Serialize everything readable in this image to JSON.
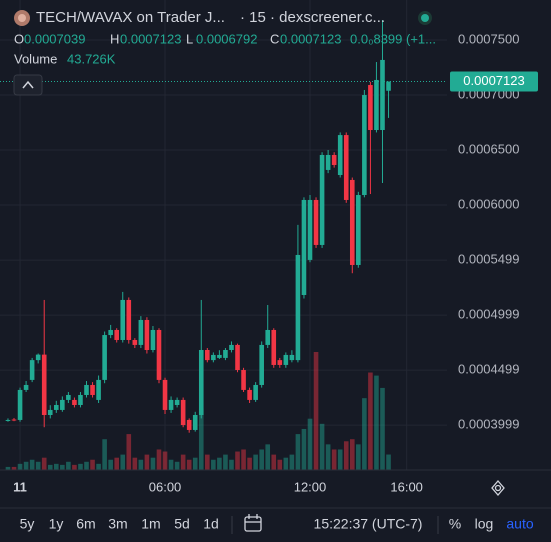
{
  "chart_data": {
    "type": "candlestick",
    "title": "TECH/WAVAX on Trader J...",
    "subtitle": "· 15 · dexscreener.c...",
    "ohlc_labels": [
      "O",
      "H",
      "L",
      "C"
    ],
    "ohlc_values": [
      0.0007039,
      0.0007123,
      0.0006792,
      0.0007123
    ],
    "change": "0.0₀8399 (+1...",
    "volume_label": "Volume",
    "volume_value_label": "43.726K",
    "up_color": "#22ab94",
    "down_color": "#f23645",
    "grid": true,
    "xlim": [
      -0.83,
      17.67
    ],
    "xticks": [
      {
        "value": 0,
        "label": "11"
      },
      {
        "value": 6,
        "label": "06:00"
      },
      {
        "value": 12,
        "label": "12:00"
      },
      {
        "value": 16,
        "label": "16:00"
      }
    ],
    "ylim": [
      0.0003591,
      0.0007864
    ],
    "yticks": [
      {
        "value": 0.00075,
        "label": "0.0007500"
      },
      {
        "value": 0.0007,
        "label": "0.0007000"
      },
      {
        "value": 0.00065,
        "label": "0.0006500"
      },
      {
        "value": 0.0006,
        "label": "0.0006000"
      },
      0.0005499,
      0.0004999,
      0.0004499,
      0.0003999
    ],
    "x": [
      -0.5,
      -0.25,
      0,
      0.25,
      0.5,
      0.75,
      1,
      1.25,
      1.5,
      1.75,
      2,
      2.25,
      2.5,
      2.75,
      3,
      3.25,
      3.5,
      3.75,
      4,
      4.25,
      4.5,
      4.75,
      5,
      5.25,
      5.5,
      5.75,
      6,
      6.25,
      6.5,
      6.75,
      7,
      7.25,
      7.5,
      7.75,
      8,
      8.25,
      8.5,
      8.75,
      9,
      9.25,
      9.5,
      9.75,
      10,
      10.25,
      10.5,
      10.75,
      11,
      11.25,
      11.5,
      11.75,
      12,
      12.25,
      12.5,
      12.75,
      13,
      13.25,
      13.5,
      13.75,
      14,
      14.25,
      14.5,
      14.75,
      15,
      15.25
    ],
    "open": [
      0.0004046,
      0.000405,
      0.0004046,
      0.0004319,
      0.000441,
      0.000459,
      0.000464,
      0.0004091,
      0.0004137,
      0.0004137,
      0.0004228,
      0.0004228,
      0.0004182,
      0.0004273,
      0.0004364,
      0.0004228,
      0.000441,
      0.0004818,
      0.0004864,
      0.0004773,
      0.0005137,
      0.0004773,
      0.0004728,
      0.0004955,
      0.0004682,
      0.0004864,
      0.000441,
      0.0004137,
      0.0004182,
      0.0004228,
      0.0004046,
      0.0003955,
      0.0004091,
      0.0004682,
      0.000459,
      0.000461,
      0.000461,
      0.0004682,
      0.0004728,
      0.00045,
      0.0004319,
      0.0004228,
      0.0004364,
      0.0004728,
      0.0004864,
      0.000459,
      0.0004546,
      0.000459,
      0.000459,
      0.0005182,
      0.0005501,
      0.0006046,
      0.0005637,
      0.0006319,
      0.0006455,
      0.0006273,
      0.0006636,
      0.0006228,
      0.0005455,
      0.0006091,
      0.0007091,
      0.0006682,
      0.0006682,
      0.0007039
    ],
    "high": [
      0.000406,
      0.0004064,
      0.000434,
      0.00044,
      0.000461,
      0.000465,
      0.0005137,
      0.000418,
      0.000422,
      0.000426,
      0.00043,
      0.000425,
      0.00043,
      0.00044,
      0.000439,
      0.000445,
      0.000485,
      0.000491,
      0.000488,
      0.000521,
      0.000516,
      0.000479,
      0.000499,
      0.000498,
      0.00049,
      0.000488,
      0.000443,
      0.000426,
      0.000425,
      0.000425,
      0.000406,
      0.000412,
      0.0005137,
      0.00047,
      0.000466,
      0.000468,
      0.00047,
      0.000476,
      0.000474,
      0.000452,
      0.000434,
      0.000439,
      0.000476,
      0.0005091,
      0.000488,
      0.000461,
      0.000466,
      0.000468,
      0.0005819,
      0.000607,
      0.0006091,
      0.000607,
      0.000648,
      0.00065,
      0.000648,
      0.000666,
      0.000666,
      0.000625,
      0.000612,
      0.0007046,
      0.000712,
      0.00073,
      0.0007682,
      0.0007123
    ],
    "low": [
      0.000403,
      0.0004035,
      0.000403,
      0.00043,
      0.000439,
      0.000456,
      0.000398,
      0.000406,
      0.000411,
      0.000412,
      0.00042,
      0.000416,
      0.000416,
      0.000425,
      0.000425,
      0.00042,
      0.000438,
      0.000479,
      0.000475,
      0.000475,
      0.000474,
      0.00047,
      0.00047,
      0.000465,
      0.000466,
      0.000438,
      0.00041,
      0.000411,
      0.000416,
      0.000398,
      0.000393,
      0.000394,
      0.000406,
      0.000457,
      0.000457,
      0.00046,
      0.000459,
      0.000466,
      0.000448,
      0.00043,
      0.00042,
      0.000421,
      0.000434,
      0.00047,
      0.000452,
      0.000452,
      0.000452,
      0.000457,
      0.000457,
      0.000515,
      0.000548,
      0.000561,
      0.000561,
      0.000629,
      0.000634,
      0.000625,
      0.000602,
      0.000538,
      0.000543,
      0.000607,
      0.00061,
      0.000666,
      0.00062,
      0.0006792
    ],
    "close": [
      0.0004046,
      0.0004046,
      0.0004319,
      0.0004364,
      0.000459,
      0.000464,
      0.0004091,
      0.0004137,
      0.0004182,
      0.0004228,
      0.0004273,
      0.0004182,
      0.0004273,
      0.0004364,
      0.0004273,
      0.000441,
      0.0004818,
      0.0004864,
      0.0004773,
      0.0005137,
      0.0004773,
      0.0004728,
      0.0004955,
      0.0004682,
      0.0004864,
      0.000441,
      0.0004137,
      0.0004228,
      0.0004228,
      0.0004,
      0.0003955,
      0.0004091,
      0.0004682,
      0.000459,
      0.0004637,
      0.0004637,
      0.0004682,
      0.0004728,
      0.00045,
      0.0004319,
      0.0004228,
      0.0004364,
      0.0004728,
      0.0004864,
      0.0004546,
      0.0004546,
      0.0004637,
      0.0004637,
      0.0005546,
      0.0006046,
      0.0006046,
      0.0005637,
      0.0006455,
      0.0006455,
      0.0006364,
      0.0006636,
      0.0006046,
      0.0005455,
      0.0006091,
      0.0007,
      0.0006682,
      0.0007137,
      0.0007319,
      0.0007123
    ],
    "volume": [
      8700,
      8700,
      17400,
      23200,
      29000,
      23200,
      34800,
      14500,
      17400,
      14500,
      23200,
      14500,
      17400,
      23200,
      29000,
      17400,
      87000,
      29000,
      34800,
      43500,
      101500,
      34800,
      29000,
      43500,
      34800,
      58000,
      52200,
      29000,
      23200,
      43500,
      29000,
      34800,
      174000,
      43500,
      29000,
      34800,
      43500,
      29000,
      52200,
      58000,
      34800,
      43500,
      58000,
      72500,
      43500,
      29000,
      34800,
      43500,
      101500,
      116000,
      145000,
      333500,
      130500,
      72500,
      58000,
      58000,
      81200,
      87000,
      72500,
      203000,
      275500,
      266800,
      232000,
      43726
    ]
  },
  "toolbar": {
    "ranges": [
      "5y",
      "1y",
      "6m",
      "3m",
      "1m",
      "5d",
      "1d"
    ],
    "time": "15:22:37 (UTC-7)",
    "options": [
      "%",
      "log",
      "auto"
    ]
  }
}
